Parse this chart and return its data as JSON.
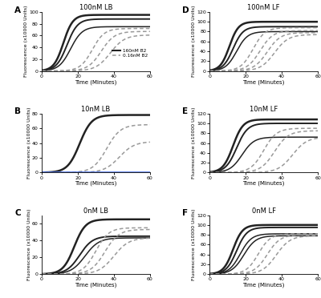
{
  "panels": [
    {
      "label": "A",
      "title": "100nM LB",
      "ylim": [
        0,
        100
      ],
      "yticks": [
        0,
        20,
        40,
        60,
        80,
        100
      ],
      "solid_curves": [
        {
          "midpoint": 12,
          "slope": 0.38,
          "top": 95,
          "lw": 1.8
        },
        {
          "midpoint": 14,
          "slope": 0.34,
          "top": 88,
          "lw": 1.4
        },
        {
          "midpoint": 16,
          "slope": 0.31,
          "top": 75,
          "lw": 1.1
        }
      ],
      "dashed_curves": [
        {
          "midpoint": 28,
          "slope": 0.3,
          "top": 72,
          "lw": 1.1
        },
        {
          "midpoint": 33,
          "slope": 0.27,
          "top": 67,
          "lw": 1.1
        },
        {
          "midpoint": 38,
          "slope": 0.25,
          "top": 61,
          "lw": 1.1
        }
      ],
      "legend": true,
      "has_flat_line": false
    },
    {
      "label": "B",
      "title": "10nM LB",
      "ylim": [
        0,
        80
      ],
      "yticks": [
        0,
        20,
        40,
        60,
        80
      ],
      "solid_curves": [
        {
          "midpoint": 21,
          "slope": 0.3,
          "top": 78,
          "lw": 1.8
        }
      ],
      "dashed_curves": [
        {
          "midpoint": 36,
          "slope": 0.26,
          "top": 65,
          "lw": 1.1
        },
        {
          "midpoint": 43,
          "slope": 0.24,
          "top": 42,
          "lw": 1.1
        }
      ],
      "legend": false,
      "has_flat_line": true
    },
    {
      "label": "C",
      "title": "0nM LB",
      "ylim": [
        0,
        70
      ],
      "yticks": [
        0,
        20,
        40,
        60
      ],
      "solid_curves": [
        {
          "midpoint": 18,
          "slope": 0.32,
          "top": 65,
          "lw": 1.8
        },
        {
          "midpoint": 21,
          "slope": 0.28,
          "top": 45,
          "lw": 1.4
        },
        {
          "midpoint": 24,
          "slope": 0.26,
          "top": 43,
          "lw": 1.1
        }
      ],
      "dashed_curves": [
        {
          "midpoint": 30,
          "slope": 0.28,
          "top": 55,
          "lw": 1.1
        },
        {
          "midpoint": 35,
          "slope": 0.26,
          "top": 53,
          "lw": 1.1
        },
        {
          "midpoint": 40,
          "slope": 0.24,
          "top": 43,
          "lw": 1.1
        }
      ],
      "legend": false,
      "has_flat_line": false
    },
    {
      "label": "D",
      "title": "100nM LF",
      "ylim": [
        0,
        120
      ],
      "yticks": [
        0,
        20,
        40,
        60,
        80,
        100,
        120
      ],
      "solid_curves": [
        {
          "midpoint": 11,
          "slope": 0.4,
          "top": 100,
          "lw": 1.8
        },
        {
          "midpoint": 13,
          "slope": 0.36,
          "top": 90,
          "lw": 1.4
        },
        {
          "midpoint": 15,
          "slope": 0.33,
          "top": 80,
          "lw": 1.1
        }
      ],
      "dashed_curves": [
        {
          "midpoint": 24,
          "slope": 0.3,
          "top": 88,
          "lw": 1.1
        },
        {
          "midpoint": 28,
          "slope": 0.28,
          "top": 82,
          "lw": 1.1
        },
        {
          "midpoint": 32,
          "slope": 0.27,
          "top": 78,
          "lw": 1.1
        },
        {
          "midpoint": 36,
          "slope": 0.26,
          "top": 74,
          "lw": 1.1
        }
      ],
      "legend": false,
      "has_flat_line": false
    },
    {
      "label": "E",
      "title": "10nM LF",
      "ylim": [
        0,
        120
      ],
      "yticks": [
        0,
        20,
        40,
        60,
        80,
        100,
        120
      ],
      "solid_curves": [
        {
          "midpoint": 13,
          "slope": 0.36,
          "top": 108,
          "lw": 1.8
        },
        {
          "midpoint": 15,
          "slope": 0.33,
          "top": 100,
          "lw": 1.4
        },
        {
          "midpoint": 18,
          "slope": 0.3,
          "top": 72,
          "lw": 1.1
        }
      ],
      "dashed_curves": [
        {
          "midpoint": 30,
          "slope": 0.28,
          "top": 90,
          "lw": 1.1
        },
        {
          "midpoint": 36,
          "slope": 0.26,
          "top": 85,
          "lw": 1.1
        },
        {
          "midpoint": 46,
          "slope": 0.25,
          "top": 72,
          "lw": 1.1
        }
      ],
      "legend": false,
      "has_flat_line": false
    },
    {
      "label": "F",
      "title": "0nM LF",
      "ylim": [
        0,
        120
      ],
      "yticks": [
        0,
        20,
        40,
        60,
        80,
        100,
        120
      ],
      "solid_curves": [
        {
          "midpoint": 13,
          "slope": 0.38,
          "top": 100,
          "lw": 1.8
        },
        {
          "midpoint": 15,
          "slope": 0.35,
          "top": 95,
          "lw": 1.4
        },
        {
          "midpoint": 17,
          "slope": 0.32,
          "top": 82,
          "lw": 1.1
        },
        {
          "midpoint": 19,
          "slope": 0.3,
          "top": 78,
          "lw": 1.1
        }
      ],
      "dashed_curves": [
        {
          "midpoint": 27,
          "slope": 0.3,
          "top": 82,
          "lw": 1.1
        },
        {
          "midpoint": 32,
          "slope": 0.28,
          "top": 80,
          "lw": 1.1
        },
        {
          "midpoint": 37,
          "slope": 0.26,
          "top": 78,
          "lw": 1.1
        }
      ],
      "legend": false,
      "has_flat_line": false
    }
  ],
  "solid_color": "#222222",
  "dashed_color": "#999999",
  "flat_color": "#4169E1",
  "xlabel": "Time (Minutes)",
  "ylabel": "Fluorescence (x10000 Units)",
  "legend_solid_label": "160nM B2",
  "legend_dashed_label": "0.16nM B2",
  "xlim": [
    0,
    60
  ],
  "xticks": [
    0,
    20,
    40,
    60
  ]
}
